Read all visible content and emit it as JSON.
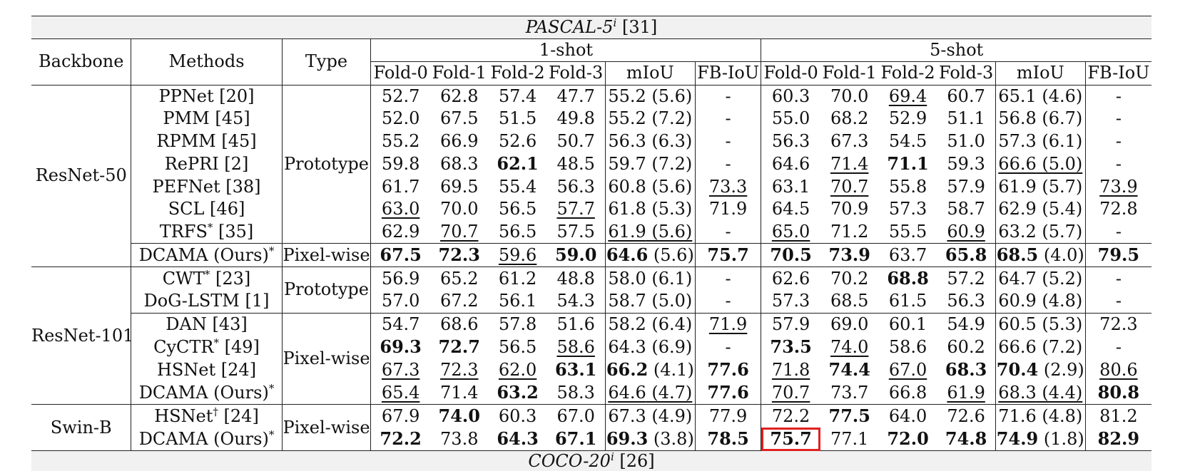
{
  "caption": {
    "dataset": "PASCAL-5",
    "sup": "i",
    "cite": "[31]"
  },
  "headers": {
    "backbone": "Backbone",
    "methods": "Methods",
    "type": "Type",
    "one_shot": "1-shot",
    "five_shot": "5-shot",
    "folds": [
      "Fold-0",
      "Fold-1",
      "Fold-2",
      "Fold-3"
    ],
    "miou": "mIoU",
    "fbiou": "FB-IoU"
  },
  "groups": [
    {
      "backbone": "ResNet-50",
      "types": [
        {
          "type": "Prototype",
          "rows": 7
        },
        {
          "type": "Pixel-wise",
          "rows": 1
        }
      ],
      "rows": [
        {
          "method": "PPNet [20]",
          "sup": "",
          "cells": [
            {
              "v": "52.7"
            },
            {
              "v": "62.8"
            },
            {
              "v": "57.4"
            },
            {
              "v": "47.7"
            },
            {
              "v": "55.2",
              "p": " (5.6)"
            },
            {
              "v": "-"
            },
            {
              "v": "60.3"
            },
            {
              "v": "70.0"
            },
            {
              "v": "69.4",
              "u": true
            },
            {
              "v": "60.7"
            },
            {
              "v": "65.1",
              "p": " (4.6)"
            },
            {
              "v": "-"
            }
          ]
        },
        {
          "method": "PMM [45]",
          "sup": "",
          "cells": [
            {
              "v": "52.0"
            },
            {
              "v": "67.5"
            },
            {
              "v": "51.5"
            },
            {
              "v": "49.8"
            },
            {
              "v": "55.2",
              "p": " (7.2)"
            },
            {
              "v": "-"
            },
            {
              "v": "55.0"
            },
            {
              "v": "68.2"
            },
            {
              "v": "52.9"
            },
            {
              "v": "51.1"
            },
            {
              "v": "56.8",
              "p": " (6.7)"
            },
            {
              "v": "-"
            }
          ]
        },
        {
          "method": "RPMM [45]",
          "sup": "",
          "cells": [
            {
              "v": "55.2"
            },
            {
              "v": "66.9"
            },
            {
              "v": "52.6"
            },
            {
              "v": "50.7"
            },
            {
              "v": "56.3",
              "p": " (6.3)"
            },
            {
              "v": "-"
            },
            {
              "v": "56.3"
            },
            {
              "v": "67.3"
            },
            {
              "v": "54.5"
            },
            {
              "v": "51.0"
            },
            {
              "v": "57.3",
              "p": " (6.1)"
            },
            {
              "v": "-"
            }
          ]
        },
        {
          "method": "RePRI [2]",
          "sup": "",
          "cells": [
            {
              "v": "59.8"
            },
            {
              "v": "68.3"
            },
            {
              "v": "62.1",
              "b": true
            },
            {
              "v": "48.5"
            },
            {
              "v": "59.7",
              "p": " (7.2)"
            },
            {
              "v": "-"
            },
            {
              "v": "64.6"
            },
            {
              "v": "71.4",
              "u": true
            },
            {
              "v": "71.1",
              "b": true
            },
            {
              "v": "59.3"
            },
            {
              "v": "66.6",
              "p": " (5.0)",
              "u": true
            },
            {
              "v": "-"
            }
          ]
        },
        {
          "method": "PEFNet [38]",
          "sup": "",
          "cells": [
            {
              "v": "61.7"
            },
            {
              "v": "69.5"
            },
            {
              "v": "55.4"
            },
            {
              "v": "56.3"
            },
            {
              "v": "60.8",
              "p": " (5.6)"
            },
            {
              "v": "73.3",
              "u": true
            },
            {
              "v": "63.1"
            },
            {
              "v": "70.7",
              "u": true
            },
            {
              "v": "55.8"
            },
            {
              "v": "57.9"
            },
            {
              "v": "61.9",
              "p": " (5.7)"
            },
            {
              "v": "73.9",
              "u": true
            }
          ]
        },
        {
          "method": "SCL [46]",
          "sup": "",
          "cells": [
            {
              "v": "63.0",
              "u": true
            },
            {
              "v": "70.0"
            },
            {
              "v": "56.5"
            },
            {
              "v": "57.7",
              "u": true
            },
            {
              "v": "61.8",
              "p": " (5.3)"
            },
            {
              "v": "71.9"
            },
            {
              "v": "64.5"
            },
            {
              "v": "70.9"
            },
            {
              "v": "57.3"
            },
            {
              "v": "58.7"
            },
            {
              "v": "62.9",
              "p": " (5.4)"
            },
            {
              "v": "72.8"
            }
          ]
        },
        {
          "method": "TRFS",
          "sup": "*",
          "cite": " [35]",
          "cells": [
            {
              "v": "62.9"
            },
            {
              "v": "70.7",
              "u": true
            },
            {
              "v": "56.5"
            },
            {
              "v": "57.5"
            },
            {
              "v": "61.9",
              "p": " (5.6)",
              "u": true
            },
            {
              "v": "-"
            },
            {
              "v": "65.0",
              "u": true
            },
            {
              "v": "71.2"
            },
            {
              "v": "55.5"
            },
            {
              "v": "60.9",
              "u": true
            },
            {
              "v": "63.2",
              "p": " (5.7)"
            },
            {
              "v": "-"
            }
          ]
        },
        {
          "method": "DCAMA (Ours)",
          "sup": "*",
          "cite": "",
          "cells": [
            {
              "v": "67.5",
              "b": true
            },
            {
              "v": "72.3",
              "b": true
            },
            {
              "v": "59.6",
              "u": true
            },
            {
              "v": "59.0",
              "b": true
            },
            {
              "v": "64.6",
              "p": " (5.6)",
              "b": true
            },
            {
              "v": "75.7",
              "b": true
            },
            {
              "v": "70.5",
              "b": true
            },
            {
              "v": "73.9",
              "b": true
            },
            {
              "v": "63.7"
            },
            {
              "v": "65.8",
              "b": true
            },
            {
              "v": "68.5",
              "p": " (4.0)",
              "b": true
            },
            {
              "v": "79.5",
              "b": true
            }
          ]
        }
      ]
    },
    {
      "backbone": "ResNet-101",
      "types": [
        {
          "type": "Prototype",
          "rows": 2
        },
        {
          "type": "Pixel-wise",
          "rows": 4
        }
      ],
      "rows": [
        {
          "method": "CWT",
          "sup": "*",
          "cite": " [23]",
          "cells": [
            {
              "v": "56.9"
            },
            {
              "v": "65.2"
            },
            {
              "v": "61.2"
            },
            {
              "v": "48.8"
            },
            {
              "v": "58.0",
              "p": " (6.1)"
            },
            {
              "v": "-"
            },
            {
              "v": "62.6"
            },
            {
              "v": "70.2"
            },
            {
              "v": "68.8",
              "b": true
            },
            {
              "v": "57.2"
            },
            {
              "v": "64.7",
              "p": " (5.2)"
            },
            {
              "v": "-"
            }
          ]
        },
        {
          "method": "DoG-LSTM [1]",
          "sup": "",
          "cells": [
            {
              "v": "57.0"
            },
            {
              "v": "67.2"
            },
            {
              "v": "56.1"
            },
            {
              "v": "54.3"
            },
            {
              "v": "58.7",
              "p": " (5.0)"
            },
            {
              "v": "-"
            },
            {
              "v": "57.3"
            },
            {
              "v": "68.5"
            },
            {
              "v": "61.5"
            },
            {
              "v": "56.3"
            },
            {
              "v": "60.9",
              "p": " (4.8)"
            },
            {
              "v": "-"
            }
          ]
        },
        {
          "method": "DAN [43]",
          "sup": "",
          "cells": [
            {
              "v": "54.7"
            },
            {
              "v": "68.6"
            },
            {
              "v": "57.8"
            },
            {
              "v": "51.6"
            },
            {
              "v": "58.2",
              "p": " (6.4)"
            },
            {
              "v": "71.9",
              "u": true
            },
            {
              "v": "57.9"
            },
            {
              "v": "69.0"
            },
            {
              "v": "60.1"
            },
            {
              "v": "54.9"
            },
            {
              "v": "60.5",
              "p": " (5.3)"
            },
            {
              "v": "72.3"
            }
          ]
        },
        {
          "method": "CyCTR",
          "sup": "*",
          "cite": " [49]",
          "cells": [
            {
              "v": "69.3",
              "b": true
            },
            {
              "v": "72.7",
              "b": true
            },
            {
              "v": "56.5"
            },
            {
              "v": "58.6",
              "u": true
            },
            {
              "v": "64.3",
              "p": " (6.9)"
            },
            {
              "v": "-"
            },
            {
              "v": "73.5",
              "b": true
            },
            {
              "v": "74.0",
              "u": true
            },
            {
              "v": "58.6"
            },
            {
              "v": "60.2"
            },
            {
              "v": "66.6",
              "p": " (7.2)"
            },
            {
              "v": "-"
            }
          ]
        },
        {
          "method": "HSNet [24]",
          "sup": "",
          "cells": [
            {
              "v": "67.3",
              "u": true
            },
            {
              "v": "72.3",
              "u": true
            },
            {
              "v": "62.0",
              "u": true
            },
            {
              "v": "63.1",
              "b": true
            },
            {
              "v": "66.2",
              "p": " (4.1)",
              "b": true
            },
            {
              "v": "77.6",
              "b": true
            },
            {
              "v": "71.8",
              "u": true
            },
            {
              "v": "74.4",
              "b": true
            },
            {
              "v": "67.0",
              "u": true
            },
            {
              "v": "68.3",
              "b": true
            },
            {
              "v": "70.4",
              "p": " (2.9)",
              "b": true
            },
            {
              "v": "80.6",
              "u": true
            }
          ]
        },
        {
          "method": "DCAMA (Ours)",
          "sup": "*",
          "cite": "",
          "cells": [
            {
              "v": "65.4",
              "u": true
            },
            {
              "v": "71.4"
            },
            {
              "v": "63.2",
              "b": true
            },
            {
              "v": "58.3"
            },
            {
              "v": "64.6",
              "p": " (4.7)",
              "u": true
            },
            {
              "v": "77.6",
              "b": true
            },
            {
              "v": "70.7",
              "u": true
            },
            {
              "v": "73.7"
            },
            {
              "v": "66.8"
            },
            {
              "v": "61.9",
              "u": true
            },
            {
              "v": "68.3",
              "p": " (4.4)",
              "u": true
            },
            {
              "v": "80.8",
              "b": true
            }
          ]
        }
      ]
    },
    {
      "backbone": "Swin-B",
      "types": [
        {
          "type": "Pixel-wise",
          "rows": 2
        }
      ],
      "rows": [
        {
          "method": "HSNet",
          "sup": "†",
          "cite": " [24]",
          "cells": [
            {
              "v": "67.9"
            },
            {
              "v": "74.0",
              "b": true
            },
            {
              "v": "60.3"
            },
            {
              "v": "67.0"
            },
            {
              "v": "67.3",
              "p": " (4.9)"
            },
            {
              "v": "77.9"
            },
            {
              "v": "72.2"
            },
            {
              "v": "77.5",
              "b": true
            },
            {
              "v": "64.0"
            },
            {
              "v": "72.6"
            },
            {
              "v": "71.6",
              "p": " (4.8)"
            },
            {
              "v": "81.2"
            }
          ]
        },
        {
          "method": "DCAMA (Ours)",
          "sup": "*",
          "cite": "",
          "cells": [
            {
              "v": "72.2",
              "b": true
            },
            {
              "v": "73.8"
            },
            {
              "v": "64.3",
              "b": true
            },
            {
              "v": "67.1",
              "b": true
            },
            {
              "v": "69.3",
              "p": " (3.8)",
              "b": true
            },
            {
              "v": "78.5",
              "b": true
            },
            {
              "v": "75.7",
              "b": true,
              "hl": true
            },
            {
              "v": "77.1"
            },
            {
              "v": "72.0",
              "b": true
            },
            {
              "v": "74.8",
              "b": true
            },
            {
              "v": "74.9",
              "p": " (1.8)",
              "b": true
            },
            {
              "v": "82.9",
              "b": true
            }
          ]
        }
      ]
    }
  ],
  "footer_caption": {
    "dataset": "COCO-20",
    "sup": "i",
    "cite": "[26]"
  }
}
